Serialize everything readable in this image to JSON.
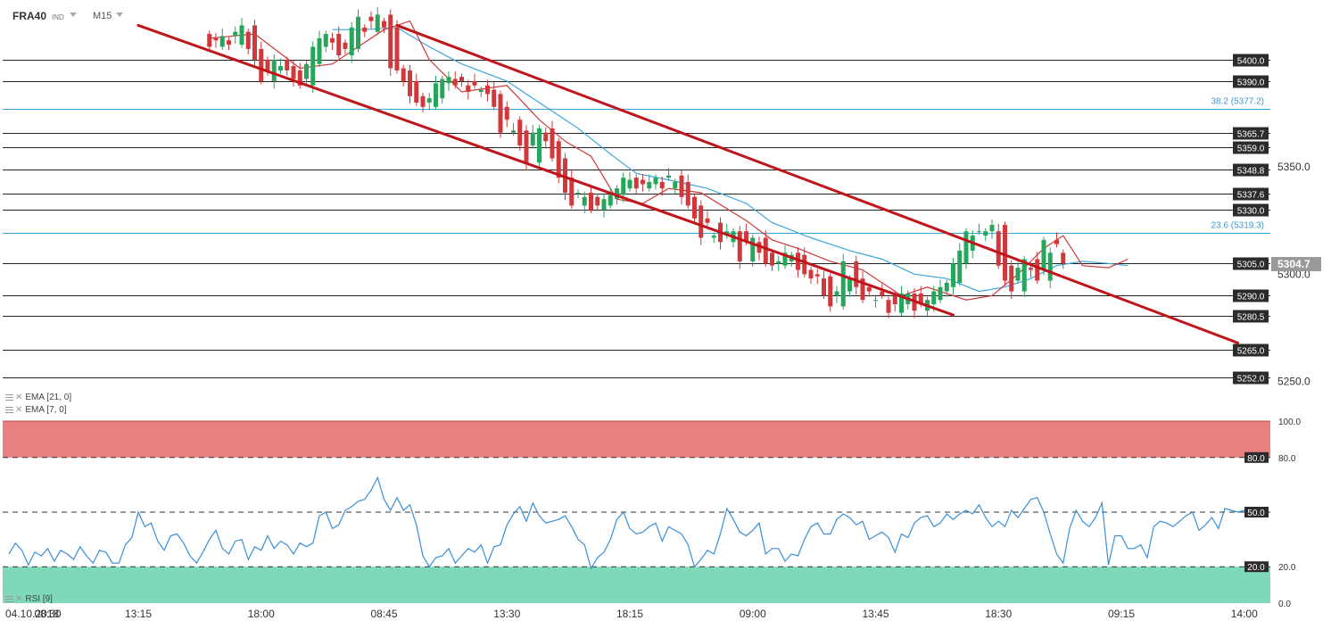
{
  "header": {
    "symbol": "FRA40",
    "type": "IND",
    "timeframe": "M15"
  },
  "indicators": [
    {
      "name": "EMA",
      "params": "[21, 0]"
    },
    {
      "name": "EMA",
      "params": "[7, 0]"
    }
  ],
  "rsi_label": "RSI [9]",
  "colors": {
    "up": "#26a65b",
    "down": "#d0383b",
    "ema7": "#d0383b",
    "ema21": "#3aa7df",
    "channel": "#c0161b",
    "overbought": "#e88080",
    "oversold": "#7fd8b8",
    "rsi": "#3a8fd8"
  },
  "chart_data": {
    "type": "candlestick",
    "price_axis": {
      "range": [
        5244,
        5422
      ],
      "ticks": [
        5350.0,
        5300.0,
        5250.0
      ]
    },
    "current_price": "5304.7",
    "x_ticks": [
      {
        "label": "04.10.2018",
        "bar": 0
      },
      {
        "label": "08:30",
        "bar": 6
      },
      {
        "label": "13:15",
        "bar": 20
      },
      {
        "label": "18:00",
        "bar": 39
      },
      {
        "label": "08:45",
        "bar": 58
      },
      {
        "label": "13:30",
        "bar": 77
      },
      {
        "label": "18:15",
        "bar": 96
      },
      {
        "label": "09:00",
        "bar": 115
      },
      {
        "label": "13:45",
        "bar": 134
      },
      {
        "label": "18:30",
        "bar": 153
      },
      {
        "label": "09:15",
        "bar": 172
      },
      {
        "label": "14:00",
        "bar": 191
      }
    ],
    "levels": [
      {
        "value": 5400.0,
        "label": "5400.0",
        "kind": "box"
      },
      {
        "value": 5390.0,
        "label": "5390.0",
        "kind": "box"
      },
      {
        "value": 5377.2,
        "label": "38.2 (5377.2)",
        "kind": "fib"
      },
      {
        "value": 5365.7,
        "label": "5365.7",
        "kind": "box"
      },
      {
        "value": 5359.0,
        "label": "5359.0",
        "kind": "box"
      },
      {
        "value": 5348.8,
        "label": "5348.8",
        "kind": "box"
      },
      {
        "value": 5337.6,
        "label": "5337.6",
        "kind": "box"
      },
      {
        "value": 5330.0,
        "label": "5330.0",
        "kind": "box"
      },
      {
        "value": 5319.3,
        "label": "23.6 (5319.3)",
        "kind": "fib"
      },
      {
        "value": 5305.0,
        "label": "5305.0",
        "kind": "box"
      },
      {
        "value": 5290.0,
        "label": "5290.0",
        "kind": "box"
      },
      {
        "value": 5280.5,
        "label": "5280.5",
        "kind": "box"
      },
      {
        "value": 5265.0,
        "label": "5265.0",
        "kind": "box"
      },
      {
        "value": 5252.0,
        "label": "5252.0",
        "kind": "box"
      }
    ],
    "channel_lines": [
      {
        "from": [
          20,
          5416
        ],
        "to": [
          146,
          5281
        ]
      },
      {
        "from": [
          60,
          5416
        ],
        "to": [
          190,
          5268
        ]
      }
    ],
    "candles": {
      "start_bar": 31,
      "open": [
        5412,
        5410,
        5406,
        5409,
        5411,
        5407,
        5413,
        5416,
        5405,
        5400,
        5390,
        5395,
        5400,
        5397,
        5395,
        5391,
        5388,
        5398,
        5406,
        5410,
        5412,
        5408,
        5402,
        5405,
        5415,
        5420,
        5413,
        5418,
        5421,
        5415,
        5396,
        5395,
        5390,
        5383,
        5380,
        5378,
        5382,
        5389,
        5391,
        5392,
        5388,
        5390,
        5385,
        5388,
        5386,
        5384,
        5378,
        5366,
        5372,
        5367,
        5360,
        5352,
        5366,
        5368,
        5362,
        5354,
        5345,
        5338,
        5332,
        5338,
        5336,
        5330,
        5332,
        5335,
        5337,
        5340,
        5345,
        5344,
        5340,
        5342,
        5343,
        5345,
        5340,
        5346,
        5343,
        5336,
        5332,
        5326,
        5317,
        5324,
        5318,
        5315,
        5320,
        5320,
        5306,
        5315,
        5317,
        5310,
        5305,
        5304,
        5306,
        5310,
        5309,
        5302,
        5300,
        5298,
        5299,
        5290,
        5285,
        5292,
        5306,
        5298,
        5294,
        5288,
        5292,
        5288,
        5290,
        5282,
        5286,
        5291,
        5291,
        5283,
        5286,
        5288,
        5292,
        5294,
        5296,
        5305,
        5311,
        5320,
        5318,
        5320,
        5320,
        5323,
        5304,
        5297,
        5292,
        5303,
        5307,
        5302,
        5297,
        5316,
        5310
      ],
      "close": [
        5406,
        5409,
        5411,
        5407,
        5413,
        5416,
        5405,
        5400,
        5390,
        5395,
        5400,
        5397,
        5395,
        5391,
        5388,
        5398,
        5406,
        5410,
        5412,
        5408,
        5402,
        5405,
        5415,
        5420,
        5413,
        5418,
        5421,
        5415,
        5396,
        5395,
        5390,
        5383,
        5380,
        5378,
        5382,
        5389,
        5391,
        5392,
        5388,
        5390,
        5385,
        5388,
        5386,
        5384,
        5378,
        5366,
        5372,
        5367,
        5360,
        5352,
        5366,
        5368,
        5362,
        5354,
        5345,
        5338,
        5332,
        5338,
        5336,
        5330,
        5332,
        5335,
        5337,
        5340,
        5345,
        5344,
        5340,
        5342,
        5343,
        5345,
        5340,
        5346,
        5343,
        5336,
        5332,
        5326,
        5317,
        5324,
        5318,
        5315,
        5320,
        5320,
        5306,
        5315,
        5317,
        5310,
        5305,
        5304,
        5306,
        5310,
        5309,
        5302,
        5300,
        5298,
        5299,
        5290,
        5285,
        5292,
        5306,
        5298,
        5294,
        5288,
        5292,
        5288,
        5290,
        5282,
        5286,
        5291,
        5291,
        5283,
        5286,
        5288,
        5292,
        5294,
        5296,
        5305,
        5311,
        5320,
        5318,
        5320,
        5320,
        5323,
        5304,
        5297,
        5292,
        5303,
        5307,
        5302,
        5297,
        5316,
        5310,
        5314,
        5305
      ]
    },
    "ema7": [
      [
        31,
        5410
      ],
      [
        38,
        5412
      ],
      [
        45,
        5396
      ],
      [
        50,
        5398
      ],
      [
        58,
        5414
      ],
      [
        62,
        5418
      ],
      [
        65,
        5400
      ],
      [
        70,
        5385
      ],
      [
        77,
        5388
      ],
      [
        82,
        5372
      ],
      [
        86,
        5362
      ],
      [
        90,
        5355
      ],
      [
        94,
        5335
      ],
      [
        98,
        5333
      ],
      [
        102,
        5340
      ],
      [
        107,
        5338
      ],
      [
        114,
        5325
      ],
      [
        118,
        5316
      ],
      [
        122,
        5312
      ],
      [
        127,
        5306
      ],
      [
        132,
        5302
      ],
      [
        138,
        5290
      ],
      [
        142,
        5294
      ],
      [
        148,
        5288
      ],
      [
        152,
        5290
      ],
      [
        156,
        5300
      ],
      [
        160,
        5312
      ],
      [
        163,
        5318
      ],
      [
        166,
        5304
      ],
      [
        170,
        5303
      ],
      [
        173,
        5307
      ]
    ],
    "ema21": [
      [
        50,
        5414
      ],
      [
        55,
        5414
      ],
      [
        60,
        5415
      ],
      [
        65,
        5406
      ],
      [
        70,
        5398
      ],
      [
        77,
        5390
      ],
      [
        82,
        5380
      ],
      [
        88,
        5368
      ],
      [
        93,
        5356
      ],
      [
        97,
        5347
      ],
      [
        102,
        5344
      ],
      [
        108,
        5340
      ],
      [
        114,
        5333
      ],
      [
        118,
        5324
      ],
      [
        124,
        5317
      ],
      [
        130,
        5311
      ],
      [
        135,
        5307
      ],
      [
        140,
        5300
      ],
      [
        145,
        5298
      ],
      [
        150,
        5292
      ],
      [
        154,
        5294
      ],
      [
        158,
        5298
      ],
      [
        162,
        5304
      ],
      [
        166,
        5306
      ],
      [
        170,
        5305
      ],
      [
        173,
        5304
      ]
    ],
    "rsi": {
      "range": [
        0,
        100
      ],
      "levels": [
        {
          "value": 80,
          "label": "80.0"
        },
        {
          "value": 50,
          "label": "50.0"
        },
        {
          "value": 20,
          "label": "20.0"
        }
      ],
      "axis_labels": [
        {
          "value": 100,
          "label": "100.0"
        },
        {
          "value": 80,
          "label": "80.0"
        },
        {
          "value": 20,
          "label": "20.0"
        },
        {
          "value": 0,
          "label": "0.0"
        }
      ],
      "start_bar": 0,
      "values": [
        27,
        33,
        29,
        21,
        28,
        26,
        30,
        23,
        29,
        27,
        24,
        31,
        26,
        22,
        29,
        28,
        22,
        22,
        32,
        36,
        50,
        42,
        44,
        34,
        29,
        37,
        38,
        33,
        26,
        22,
        28,
        35,
        40,
        30,
        27,
        34,
        35,
        24,
        31,
        29,
        37,
        30,
        34,
        32,
        27,
        33,
        31,
        33,
        48,
        50,
        41,
        43,
        51,
        53,
        56,
        57,
        62,
        69,
        57,
        51,
        58,
        51,
        54,
        43,
        26,
        20,
        25,
        26,
        30,
        22,
        26,
        30,
        28,
        32,
        22,
        31,
        32,
        43,
        49,
        53,
        45,
        55,
        48,
        44,
        45,
        46,
        48,
        42,
        35,
        32,
        19,
        25,
        28,
        35,
        46,
        50,
        41,
        38,
        39,
        42,
        44,
        34,
        42,
        40,
        38,
        32,
        20,
        24,
        29,
        27,
        38,
        52,
        46,
        39,
        37,
        40,
        44,
        27,
        30,
        30,
        23,
        27,
        26,
        35,
        42,
        44,
        38,
        38,
        46,
        49,
        47,
        43,
        45,
        35,
        37,
        39,
        36,
        28,
        38,
        36,
        44,
        47,
        48,
        42,
        44,
        49,
        46,
        49,
        51,
        49,
        54,
        47,
        42,
        45,
        42,
        51,
        47,
        52,
        57,
        58,
        50,
        38,
        27,
        22,
        41,
        51,
        45,
        42,
        47,
        55,
        21,
        37,
        37,
        30,
        30,
        32,
        25,
        42,
        45,
        44,
        42,
        45,
        48,
        50,
        40,
        43,
        47,
        41,
        52,
        51,
        50,
        51
      ]
    }
  }
}
